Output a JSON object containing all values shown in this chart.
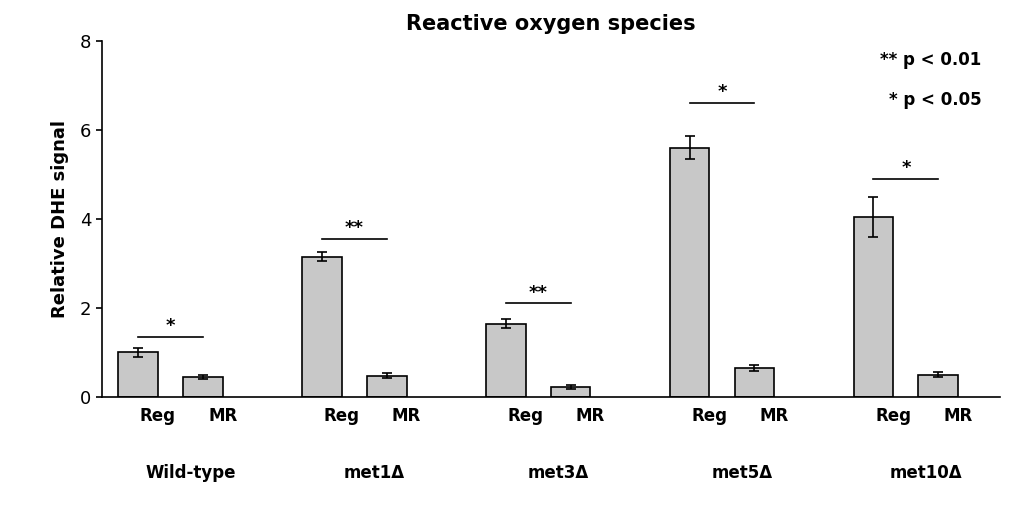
{
  "title": "Reactive oxygen species",
  "ylabel": "Relative DHE signal",
  "ylim": [
    0,
    8
  ],
  "yticks": [
    0,
    2,
    4,
    6,
    8
  ],
  "bar_color": "#c8c8c8",
  "bar_edge_color": "#000000",
  "bar_width": 0.55,
  "groups": [
    "Wild-type",
    "met1Δ",
    "met3Δ",
    "met5Δ",
    "met10Δ"
  ],
  "conditions": [
    "Reg",
    "MR"
  ],
  "values": [
    [
      1.0,
      0.45
    ],
    [
      3.15,
      0.48
    ],
    [
      1.65,
      0.22
    ],
    [
      5.6,
      0.65
    ],
    [
      4.05,
      0.5
    ]
  ],
  "errors": [
    [
      0.1,
      0.05
    ],
    [
      0.1,
      0.05
    ],
    [
      0.1,
      0.04
    ],
    [
      0.25,
      0.07
    ],
    [
      0.45,
      0.06
    ]
  ],
  "significance": [
    "*",
    "**",
    "**",
    "*",
    "*"
  ],
  "sig_line_heights": [
    1.35,
    3.55,
    2.1,
    6.6,
    4.9
  ],
  "legend_text": [
    "** p < 0.01",
    "* p < 0.05"
  ]
}
